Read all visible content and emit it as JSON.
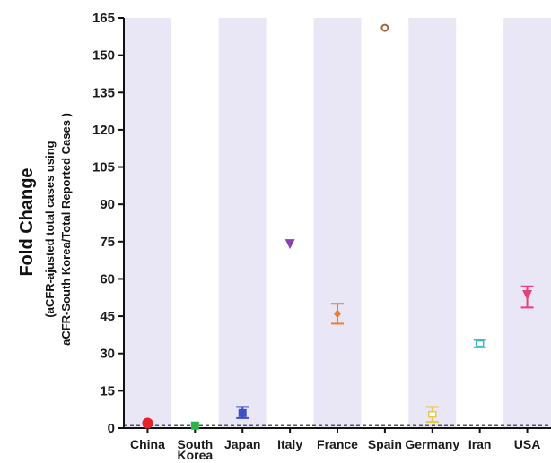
{
  "chart_data": {
    "type": "scatter",
    "ylabel": "Fold Change",
    "ylabel_sub_1": "(aCFR-ajusted total cases using",
    "ylabel_sub_2": "aCFR-South Korea/Total Reported Cases )",
    "ylim": [
      0,
      165
    ],
    "yticks": [
      "0",
      "15",
      "30",
      "45",
      "60",
      "75",
      "90",
      "105",
      "120",
      "135",
      "150",
      "165"
    ],
    "reference_line": 1,
    "shaded_bands": "alternating lavender background per category",
    "categories": [
      {
        "name_lines": [
          "China"
        ],
        "value": 2,
        "err_low": 2,
        "err_high": 2,
        "color": "#e8212b",
        "marker": "circle"
      },
      {
        "name_lines": [
          "South",
          "Korea"
        ],
        "value": 1,
        "err_low": 1,
        "err_high": 1,
        "color": "#2db34a",
        "marker": "square"
      },
      {
        "name_lines": [
          "Japan"
        ],
        "value": 6,
        "err_low": 4,
        "err_high": 8.5,
        "color": "#3f4fc4",
        "marker": "square"
      },
      {
        "name_lines": [
          "Italy"
        ],
        "value": 74,
        "err_low": 74,
        "err_high": 74,
        "color": "#8b3fb5",
        "marker": "triangle-down"
      },
      {
        "name_lines": [
          "France"
        ],
        "value": 46,
        "err_low": 42,
        "err_high": 50,
        "color": "#ef7d2f",
        "marker": "diamond"
      },
      {
        "name_lines": [
          "Spain"
        ],
        "value": 161,
        "err_low": 161,
        "err_high": 161,
        "color": "#a5643b",
        "marker": "hollow-circle"
      },
      {
        "name_lines": [
          "Germany"
        ],
        "value": 5.5,
        "err_low": 2.5,
        "err_high": 8.5,
        "color": "#e6c84a",
        "marker": "hollow-square"
      },
      {
        "name_lines": [
          "Iran"
        ],
        "value": 34,
        "err_low": 32.5,
        "err_high": 35.5,
        "color": "#3fb8c8",
        "marker": "hollow-square"
      },
      {
        "name_lines": [
          "USA"
        ],
        "value": 53.5,
        "err_low": 48.5,
        "err_high": 57,
        "color": "#e8407a",
        "marker": "triangle-down"
      }
    ]
  }
}
